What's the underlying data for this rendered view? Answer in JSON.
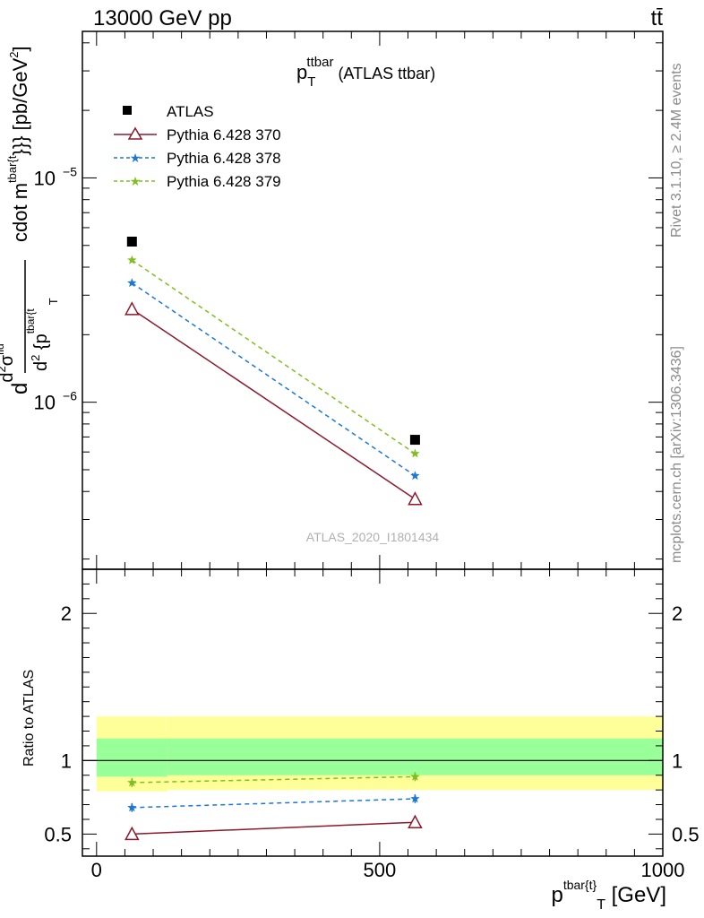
{
  "header": {
    "left": "13000 GeV pp",
    "right": "tt̄"
  },
  "side_labels": {
    "rivet": "Rivet 3.1.10, ≥ 2.4M events",
    "mcplots": "mcplots.cern.ch [arXiv:1306.3436]"
  },
  "chart_data": [
    {
      "type": "line",
      "title": "p_T^ttbar (ATLAS ttbar)",
      "title_parts": {
        "main": "p",
        "sup": "ttbar",
        "sub": "T",
        "rest": " (ATLAS ttbar)"
      },
      "watermark": "ATLAS_2020_I1801434",
      "ylabel_parts": {
        "d1": "d",
        "d2": "d",
        "sup2": "2",
        "sigma": "σ",
        "sigsup": "fid",
        "den_d": "d",
        "den_sup": "2",
        "den_p": " {p",
        "den_sup2": "tbar{t",
        "den_sub": "T",
        "rest": "cdot m",
        "rest_sup": "tbar{t",
        "rest_end": "}}} [pb/GeV",
        "rest_sup2": "2",
        "close": "]"
      },
      "yscale": "log",
      "ylim": [
        1.8e-07,
        4.5e-05
      ],
      "xlim": [
        -25,
        1000
      ],
      "yticks": [
        {
          "value": 1e-06,
          "base": "10",
          "exp": "−6"
        },
        {
          "value": 1e-05,
          "base": "10",
          "exp": "−5"
        }
      ],
      "series": [
        {
          "name": "ATLAS",
          "style": "data",
          "color": "#000000",
          "x": [
            62.5,
            562.5
          ],
          "y": [
            5.2e-06,
            6.8e-07
          ]
        },
        {
          "name": "Pythia 6.428 370",
          "style": "solid-triangle",
          "color": "#8b1a2b",
          "x": [
            62.5,
            562.5
          ],
          "y": [
            2.6e-06,
            3.7e-07
          ]
        },
        {
          "name": "Pythia 6.428 378",
          "style": "dashed-star",
          "color": "#1f77d4",
          "x": [
            62.5,
            562.5
          ],
          "y": [
            3.4e-06,
            4.7e-07
          ]
        },
        {
          "name": "Pythia 6.428 379",
          "style": "dashed-star",
          "color": "#7fbf1f",
          "x": [
            62.5,
            562.5
          ],
          "y": [
            4.3e-06,
            5.9e-07
          ]
        }
      ]
    },
    {
      "type": "line",
      "ylabel": "Ratio to ATLAS",
      "xlabel_parts": {
        "main": "p",
        "sup": "tbar{t}",
        "sub": "T",
        "rest": " [GeV]"
      },
      "ylim": [
        0.35,
        2.3
      ],
      "xlim": [
        -25,
        1000
      ],
      "yticks": [
        0.5,
        1,
        2
      ],
      "ytick_labels": [
        "0.5",
        "1",
        "2"
      ],
      "xticks": [
        0,
        500,
        1000
      ],
      "xtick_labels": [
        "0",
        "500",
        "1000"
      ],
      "bands": [
        {
          "name": "total-uncertainty",
          "color": "#ffff99",
          "segments": [
            {
              "x0": 0,
              "x1": 125,
              "lo": 0.79,
              "hi": 1.3
            },
            {
              "x0": 125,
              "x1": 1000,
              "lo": 0.8,
              "hi": 1.3
            }
          ]
        },
        {
          "name": "stat-uncertainty",
          "color": "#99ff99",
          "segments": [
            {
              "x0": 0,
              "x1": 125,
              "lo": 0.89,
              "hi": 1.15
            },
            {
              "x0": 125,
              "x1": 1000,
              "lo": 0.9,
              "hi": 1.15
            }
          ]
        }
      ],
      "series": [
        {
          "name": "Pythia 6.428 370",
          "style": "solid-triangle",
          "color": "#8b1a2b",
          "x": [
            62.5,
            562.5
          ],
          "y": [
            0.5,
            0.58
          ],
          "err": [
            0,
            0
          ]
        },
        {
          "name": "Pythia 6.428 378",
          "style": "dashed-star",
          "color": "#1f77d4",
          "x": [
            62.5,
            562.5
          ],
          "y": [
            0.68,
            0.74
          ],
          "err": [
            0.03,
            0.03
          ]
        },
        {
          "name": "Pythia 6.428 379",
          "style": "dashed-star",
          "color": "#7fbf1f",
          "x": [
            62.5,
            562.5
          ],
          "y": [
            0.85,
            0.89
          ],
          "err": [
            0.03,
            0.03
          ]
        }
      ]
    }
  ]
}
